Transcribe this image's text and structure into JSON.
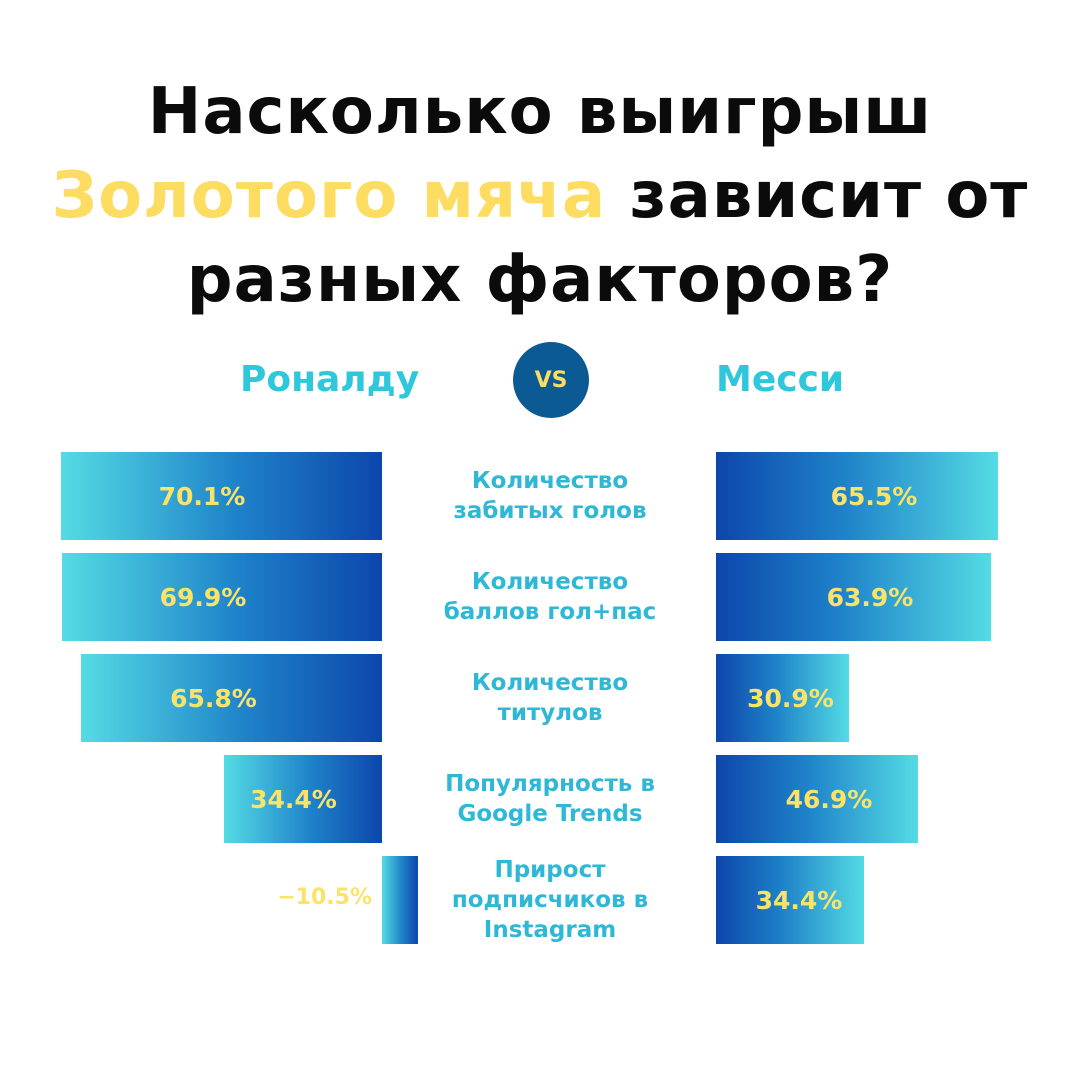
{
  "header": {
    "title_line1": "Насколько выигрыш",
    "title_highlight": "Золотого мяча",
    "title_line2_rest": "зависит от",
    "title_line3": "разных факторов?"
  },
  "vs_label": "VS",
  "colors": {
    "highlight": "#fddc62",
    "player_label": "#2fc7dc",
    "category_text": "#2fb8d6",
    "value_text": "#fbe36a",
    "vs_circle": "#0b5a93",
    "bar_light": "#55dbe4",
    "bar_dark": "#0d46ab"
  },
  "chart_data": {
    "type": "bar",
    "orientation": "horizontal-butterfly",
    "categories": [
      "Количество\nзабитых голов",
      "Количество\nбаллов гол+пас",
      "Количество\nтитулов",
      "Популярность в\nGoogle Trends",
      "Прирост\nподписчиков в\nInstagram"
    ],
    "series": [
      {
        "name": "Роналду",
        "values": [
          70.1,
          69.9,
          65.8,
          34.4,
          -10.5
        ],
        "labels": [
          "70.1%",
          "69.9%",
          "65.8%",
          "34.4%",
          "-10.5%"
        ]
      },
      {
        "name": "Месси",
        "values": [
          65.5,
          63.9,
          30.9,
          46.9,
          34.4
        ],
        "labels": [
          "65.5%",
          "63.9%",
          "30.9%",
          "46.9%",
          "34.4%"
        ]
      }
    ],
    "unit": "%"
  }
}
